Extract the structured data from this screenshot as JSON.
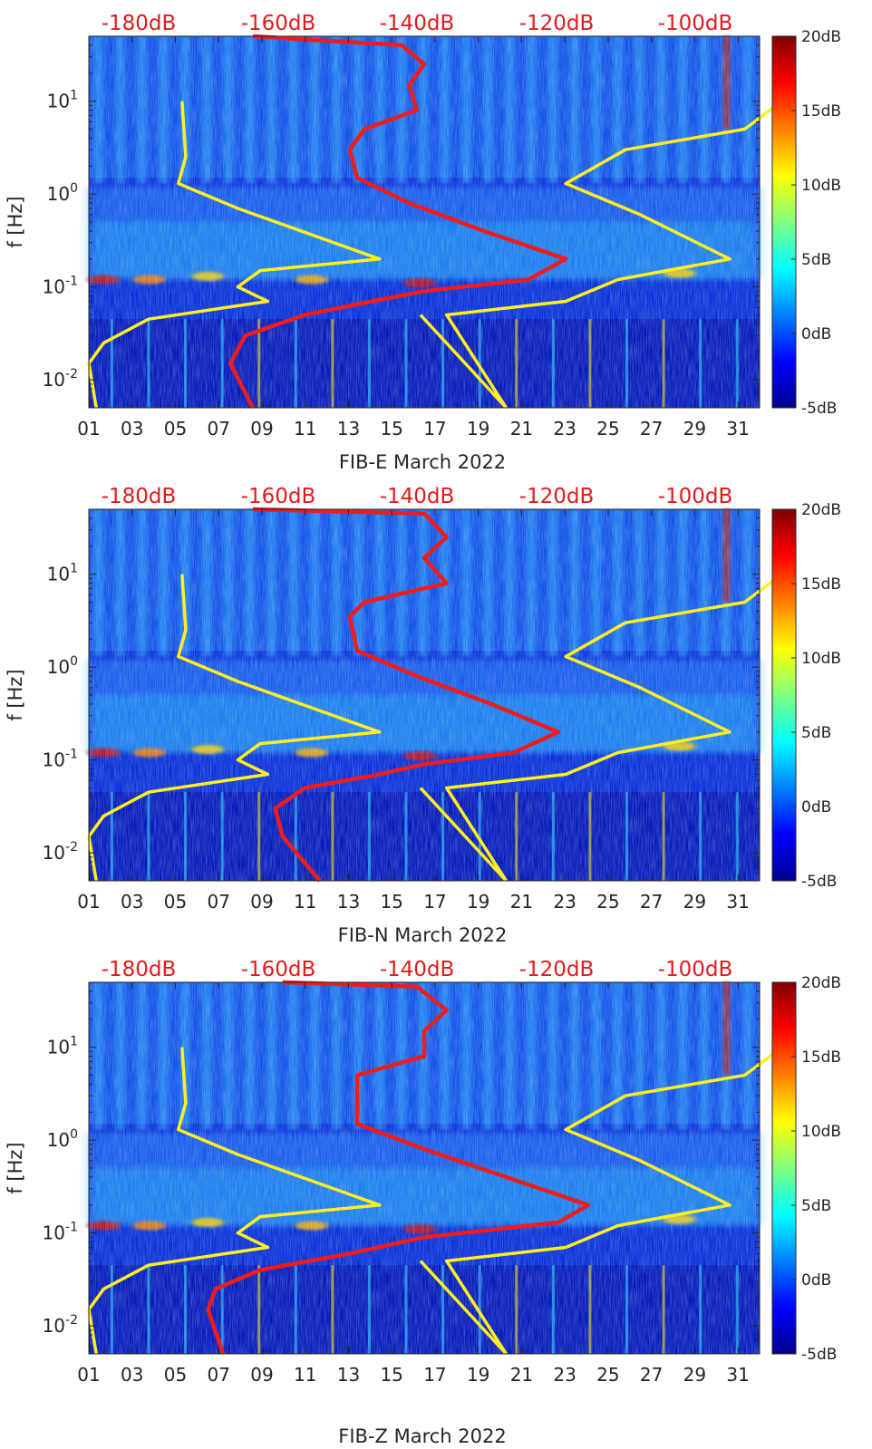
{
  "chart_data": [
    {
      "type": "heatmap",
      "id": "fib-e",
      "title": "",
      "xlabel": "FIB-E March 2022",
      "ylabel": "f [Hz]",
      "xticks": [
        "01",
        "03",
        "05",
        "07",
        "09",
        "11",
        "13",
        "15",
        "17",
        "19",
        "21",
        "23",
        "25",
        "27",
        "29",
        "31"
      ],
      "x_range": [
        1,
        32
      ],
      "y_scale": "log",
      "y_range": [
        0.005,
        50
      ],
      "yticks": [
        {
          "value": 10,
          "base": "10",
          "exp": "1"
        },
        {
          "value": 1,
          "base": "10",
          "exp": "0"
        },
        {
          "value": 0.1,
          "base": "10",
          "exp": "-1"
        },
        {
          "value": 0.01,
          "base": "10",
          "exp": "-2"
        }
      ],
      "top_axis_labels": [
        "-180dB",
        "-160dB",
        "-140dB",
        "-120dB",
        "-100dB"
      ],
      "top_axis_range_db": [
        -185,
        -95
      ],
      "colorbar": {
        "labels": [
          "20dB",
          "15dB",
          "10dB",
          "5dB",
          "0dB",
          "-5dB"
        ],
        "range": [
          -5,
          20
        ]
      },
      "annotations": [
        {
          "name": "red-psd-curve",
          "color": "#ee1c1c",
          "points": [
            [
              -163,
              50
            ],
            [
              -143,
              40
            ],
            [
              -140,
              25
            ],
            [
              -142,
              15
            ],
            [
              -141,
              8
            ],
            [
              -148,
              5
            ],
            [
              -150,
              3
            ],
            [
              -149,
              1.5
            ],
            [
              -142,
              0.8
            ],
            [
              -132,
              0.4
            ],
            [
              -121,
              0.2
            ],
            [
              -126,
              0.12
            ],
            [
              -140,
              0.09
            ],
            [
              -147,
              0.07
            ],
            [
              -156,
              0.05
            ],
            [
              -164,
              0.03
            ],
            [
              -166,
              0.015
            ],
            [
              -163,
              0.005
            ]
          ]
        },
        {
          "name": "noise-model-low-left",
          "color": "#ffee22",
          "points": [
            [
              -172.5,
              10
            ],
            [
              -172,
              2.5
            ],
            [
              -173,
              1.3
            ],
            [
              -165,
              0.7
            ],
            [
              -146,
              0.2
            ],
            [
              -162,
              0.15
            ],
            [
              -165,
              0.1
            ],
            [
              -161,
              0.07
            ],
            [
              -177,
              0.045
            ],
            [
              -183,
              0.025
            ],
            [
              -185,
              0.015
            ],
            [
              -184,
              0.005
            ]
          ]
        },
        {
          "name": "noise-model-high-right",
          "color": "#ffee22",
          "points": [
            [
              -92,
              10
            ],
            [
              -97,
              5
            ],
            [
              -113,
              3
            ],
            [
              -121,
              1.3
            ],
            [
              -111,
              0.6
            ],
            [
              -99,
              0.2
            ],
            [
              -114,
              0.12
            ],
            [
              -121,
              0.07
            ],
            [
              -137,
              0.05
            ],
            [
              -129,
              0.005
            ]
          ]
        }
      ]
    },
    {
      "type": "heatmap",
      "id": "fib-n",
      "title": "",
      "xlabel": "FIB-N March 2022",
      "ylabel": "f [Hz]",
      "xticks": [
        "01",
        "03",
        "05",
        "07",
        "09",
        "11",
        "13",
        "15",
        "17",
        "19",
        "21",
        "23",
        "25",
        "27",
        "29",
        "31"
      ],
      "x_range": [
        1,
        32
      ],
      "y_scale": "log",
      "y_range": [
        0.005,
        50
      ],
      "yticks": [
        {
          "value": 10,
          "base": "10",
          "exp": "1"
        },
        {
          "value": 1,
          "base": "10",
          "exp": "0"
        },
        {
          "value": 0.1,
          "base": "10",
          "exp": "-1"
        },
        {
          "value": 0.01,
          "base": "10",
          "exp": "-2"
        }
      ],
      "top_axis_labels": [
        "-180dB",
        "-160dB",
        "-140dB",
        "-120dB",
        "-100dB"
      ],
      "top_axis_range_db": [
        -185,
        -95
      ],
      "colorbar": {
        "labels": [
          "20dB",
          "15dB",
          "10dB",
          "5dB",
          "0dB",
          "-5dB"
        ],
        "range": [
          -5,
          20
        ]
      },
      "annotations": [
        {
          "name": "red-psd-curve",
          "color": "#ee1c1c",
          "points": [
            [
              -163,
              50
            ],
            [
              -140,
              45
            ],
            [
              -137,
              25
            ],
            [
              -140,
              15
            ],
            [
              -137,
              8
            ],
            [
              -148,
              5
            ],
            [
              -150,
              3.5
            ],
            [
              -149,
              1.5
            ],
            [
              -141,
              0.8
            ],
            [
              -131,
              0.4
            ],
            [
              -122,
              0.2
            ],
            [
              -128,
              0.12
            ],
            [
              -140,
              0.09
            ],
            [
              -146,
              0.07
            ],
            [
              -156,
              0.05
            ],
            [
              -160,
              0.03
            ],
            [
              -159,
              0.015
            ],
            [
              -154,
              0.005
            ]
          ]
        },
        {
          "name": "noise-model-low-left",
          "color": "#ffee22",
          "points": [
            [
              -172.5,
              10
            ],
            [
              -172,
              2.5
            ],
            [
              -173,
              1.3
            ],
            [
              -165,
              0.7
            ],
            [
              -146,
              0.2
            ],
            [
              -162,
              0.15
            ],
            [
              -165,
              0.1
            ],
            [
              -161,
              0.07
            ],
            [
              -177,
              0.045
            ],
            [
              -183,
              0.025
            ],
            [
              -185,
              0.015
            ],
            [
              -184,
              0.005
            ]
          ]
        },
        {
          "name": "noise-model-high-right",
          "color": "#ffee22",
          "points": [
            [
              -92,
              10
            ],
            [
              -97,
              5
            ],
            [
              -113,
              3
            ],
            [
              -121,
              1.3
            ],
            [
              -111,
              0.6
            ],
            [
              -99,
              0.2
            ],
            [
              -114,
              0.12
            ],
            [
              -121,
              0.07
            ],
            [
              -137,
              0.05
            ],
            [
              -129,
              0.005
            ]
          ]
        }
      ]
    },
    {
      "type": "heatmap",
      "id": "fib-z",
      "title": "",
      "xlabel": "FIB-Z March 2022",
      "ylabel": "f [Hz]",
      "xticks": [
        "01",
        "03",
        "05",
        "07",
        "09",
        "11",
        "13",
        "15",
        "17",
        "19",
        "21",
        "23",
        "25",
        "27",
        "29",
        "31"
      ],
      "x_range": [
        1,
        32
      ],
      "y_scale": "log",
      "y_range": [
        0.005,
        50
      ],
      "yticks": [
        {
          "value": 10,
          "base": "10",
          "exp": "1"
        },
        {
          "value": 1,
          "base": "10",
          "exp": "0"
        },
        {
          "value": 0.1,
          "base": "10",
          "exp": "-1"
        },
        {
          "value": 0.01,
          "base": "10",
          "exp": "-2"
        }
      ],
      "top_axis_labels": [
        "-180dB",
        "-160dB",
        "-140dB",
        "-120dB",
        "-100dB"
      ],
      "top_axis_range_db": [
        -185,
        -95
      ],
      "colorbar": {
        "labels": [
          "20dB",
          "15dB",
          "10dB",
          "5dB",
          "0dB",
          "-5dB"
        ],
        "range": [
          -5,
          20
        ]
      },
      "annotations": [
        {
          "name": "red-psd-curve",
          "color": "#ee1c1c",
          "points": [
            [
              -159,
              50
            ],
            [
              -141,
              45
            ],
            [
              -137,
              25
            ],
            [
              -140,
              15
            ],
            [
              -140,
              8
            ],
            [
              -149,
              5
            ],
            [
              -149,
              3
            ],
            [
              -149,
              1.5
            ],
            [
              -140,
              0.8
            ],
            [
              -129,
              0.4
            ],
            [
              -118,
              0.2
            ],
            [
              -122,
              0.13
            ],
            [
              -140,
              0.09
            ],
            [
              -150,
              0.06
            ],
            [
              -162,
              0.04
            ],
            [
              -168,
              0.025
            ],
            [
              -169,
              0.015
            ],
            [
              -167,
              0.005
            ]
          ]
        },
        {
          "name": "noise-model-low-left",
          "color": "#ffee22",
          "points": [
            [
              -172.5,
              10
            ],
            [
              -172,
              2.5
            ],
            [
              -173,
              1.3
            ],
            [
              -165,
              0.7
            ],
            [
              -146,
              0.2
            ],
            [
              -162,
              0.15
            ],
            [
              -165,
              0.1
            ],
            [
              -161,
              0.07
            ],
            [
              -177,
              0.045
            ],
            [
              -183,
              0.025
            ],
            [
              -185,
              0.015
            ],
            [
              -184,
              0.005
            ]
          ]
        },
        {
          "name": "noise-model-high-right",
          "color": "#ffee22",
          "points": [
            [
              -92,
              10
            ],
            [
              -97,
              5
            ],
            [
              -113,
              3
            ],
            [
              -121,
              1.3
            ],
            [
              -111,
              0.6
            ],
            [
              -99,
              0.2
            ],
            [
              -114,
              0.12
            ],
            [
              -121,
              0.07
            ],
            [
              -137,
              0.05
            ],
            [
              -129,
              0.005
            ]
          ]
        }
      ]
    }
  ],
  "colors": {
    "red_curve": "#ee1c1c",
    "yellow_curve": "#ffee22",
    "top_label": "#e31a1c",
    "axis_text": "#262626"
  }
}
